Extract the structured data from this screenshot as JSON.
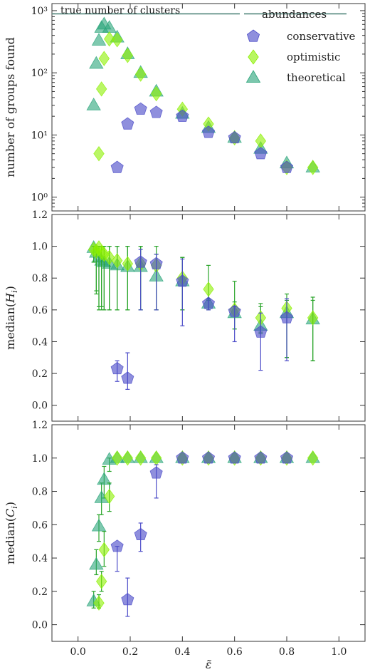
{
  "colors": {
    "conservative": "#4b4bc8",
    "optimistic": "#8cf000",
    "theoretical": "#2aa57a",
    "errorbar_green": "#2aa52a",
    "truth_line": "#5f8f86"
  },
  "chart_data": [
    {
      "type": "scatter",
      "scale_y": "log",
      "ylabel": "number of groups found",
      "ylim": [
        0.6,
        1300
      ],
      "xlim": [
        -0.1,
        1.1
      ],
      "ytick_labels": [
        "10⁰",
        "10¹",
        "10²",
        "10³"
      ],
      "ytick_values": [
        1,
        10,
        100,
        1000
      ],
      "annotation": "true number of clusters",
      "true_value": 890,
      "legend": {
        "title": "abundances",
        "placement": "top-right",
        "entries": [
          "conservative",
          "optimistic",
          "theoretical"
        ]
      },
      "series": [
        {
          "name": "conservative",
          "marker": "pentagon",
          "x": [
            0.15,
            0.19,
            0.24,
            0.3,
            0.4,
            0.5,
            0.6,
            0.7,
            0.8
          ],
          "y": [
            3,
            15,
            26,
            23,
            20,
            11,
            9,
            5,
            3
          ]
        },
        {
          "name": "optimistic",
          "marker": "diamond",
          "x": [
            0.08,
            0.09,
            0.1,
            0.12,
            0.15,
            0.19,
            0.24,
            0.3,
            0.4,
            0.5,
            0.6,
            0.7,
            0.8,
            0.9
          ],
          "y": [
            5,
            55,
            170,
            350,
            340,
            190,
            95,
            46,
            26,
            15,
            9,
            8,
            3,
            3
          ]
        },
        {
          "name": "theoretical",
          "marker": "triangle",
          "x": [
            0.06,
            0.07,
            0.08,
            0.09,
            0.1,
            0.12,
            0.15,
            0.19,
            0.24,
            0.3,
            0.4,
            0.5,
            0.6,
            0.7,
            0.8,
            0.9
          ],
          "y": [
            30,
            140,
            330,
            530,
            600,
            530,
            370,
            200,
            100,
            50,
            22,
            13,
            9,
            6,
            3.5,
            3
          ]
        }
      ]
    },
    {
      "type": "scatter",
      "ylabel": "median(H_i)",
      "ylim": [
        -0.1,
        1.2
      ],
      "xlim": [
        -0.1,
        1.1
      ],
      "ytick_labels": [
        "0.0",
        "0.2",
        "0.4",
        "0.6",
        "0.8",
        "1.0",
        "1.2"
      ],
      "ytick_values": [
        0,
        0.2,
        0.4,
        0.6,
        0.8,
        1.0,
        1.2
      ],
      "series": [
        {
          "name": "conservative",
          "marker": "pentagon",
          "x": [
            0.15,
            0.19,
            0.24,
            0.3,
            0.4,
            0.5,
            0.6,
            0.7,
            0.8
          ],
          "y": [
            0.23,
            0.17,
            0.9,
            0.89,
            0.78,
            0.64,
            0.59,
            0.46,
            0.55
          ],
          "err_low": [
            0.15,
            0.1,
            0.6,
            0.6,
            0.5,
            0.6,
            0.4,
            0.22,
            0.28
          ],
          "err_high": [
            0.28,
            0.33,
            0.98,
            0.95,
            0.92,
            0.67,
            0.62,
            0.58,
            0.67
          ]
        },
        {
          "name": "optimistic",
          "marker": "diamond",
          "x": [
            0.06,
            0.07,
            0.08,
            0.09,
            0.1,
            0.12,
            0.15,
            0.19,
            0.24,
            0.3,
            0.4,
            0.5,
            0.6,
            0.7,
            0.8,
            0.9
          ],
          "y": [
            0.98,
            0.97,
            0.99,
            0.96,
            0.95,
            0.93,
            0.91,
            0.89,
            0.89,
            0.88,
            0.8,
            0.73,
            0.6,
            0.55,
            0.61,
            0.55
          ],
          "err_low": [
            0.9,
            0.72,
            0.62,
            0.62,
            0.6,
            0.6,
            0.6,
            0.6,
            0.6,
            0.6,
            0.6,
            0.6,
            0.48,
            0.46,
            0.3,
            0.28
          ],
          "err_high": [
            1.0,
            1.0,
            1.0,
            1.0,
            1.0,
            1.0,
            1.0,
            1.0,
            1.0,
            1.0,
            0.93,
            0.88,
            0.78,
            0.64,
            0.7,
            0.68
          ]
        },
        {
          "name": "theoretical",
          "marker": "triangle",
          "x": [
            0.06,
            0.07,
            0.08,
            0.09,
            0.1,
            0.12,
            0.15,
            0.19,
            0.24,
            0.3,
            0.4,
            0.5,
            0.6,
            0.7,
            0.8,
            0.9
          ],
          "y": [
            0.99,
            0.96,
            0.93,
            0.91,
            0.9,
            0.89,
            0.88,
            0.87,
            0.87,
            0.81,
            0.78,
            0.64,
            0.58,
            0.5,
            0.58,
            0.54
          ],
          "err_low": [
            0.9,
            0.7,
            0.6,
            0.6,
            0.6,
            0.6,
            0.6,
            0.6,
            0.6,
            0.6,
            0.6,
            0.6,
            0.48,
            0.45,
            0.3,
            0.28
          ],
          "err_high": [
            1.0,
            1.0,
            1.0,
            1.0,
            1.0,
            1.0,
            1.0,
            1.0,
            1.0,
            0.95,
            0.93,
            0.66,
            0.65,
            0.62,
            0.66,
            0.66
          ]
        }
      ]
    },
    {
      "type": "scatter",
      "ylabel": "median(C_i)",
      "xlabel": "ε̃",
      "ylim": [
        -0.1,
        1.2
      ],
      "xlim": [
        -0.1,
        1.1
      ],
      "ytick_labels": [
        "0.0",
        "0.2",
        "0.4",
        "0.6",
        "0.8",
        "1.0",
        "1.2"
      ],
      "ytick_values": [
        0,
        0.2,
        0.4,
        0.6,
        0.8,
        1.0,
        1.2
      ],
      "xtick_labels": [
        "0.0",
        "0.2",
        "0.4",
        "0.6",
        "0.8",
        "1.0"
      ],
      "xtick_values": [
        0,
        0.2,
        0.4,
        0.6,
        0.8,
        1.0
      ],
      "series": [
        {
          "name": "conservative",
          "marker": "pentagon",
          "x": [
            0.15,
            0.19,
            0.24,
            0.3,
            0.4,
            0.5,
            0.6,
            0.7,
            0.8
          ],
          "y": [
            0.47,
            0.15,
            0.54,
            0.91,
            1.0,
            1.0,
            1.0,
            1.0,
            1.0
          ],
          "err_low": [
            0.32,
            0.05,
            0.44,
            0.76,
            1.0,
            1.0,
            1.0,
            1.0,
            1.0
          ],
          "err_high": [
            0.47,
            0.28,
            0.61,
            0.96,
            1.0,
            1.0,
            1.0,
            1.0,
            1.0
          ]
        },
        {
          "name": "optimistic",
          "marker": "diamond",
          "x": [
            0.08,
            0.09,
            0.1,
            0.12,
            0.15,
            0.19,
            0.24,
            0.3,
            0.4,
            0.5,
            0.6,
            0.7,
            0.8,
            0.9
          ],
          "y": [
            0.13,
            0.26,
            0.45,
            0.77,
            1.0,
            1.0,
            1.0,
            1.0,
            1.0,
            1.0,
            1.0,
            1.0,
            1.0,
            1.0
          ],
          "err_low": [
            0.1,
            0.2,
            0.35,
            0.68,
            1.0,
            1.0,
            1.0,
            1.0,
            1.0,
            1.0,
            1.0,
            1.0,
            1.0,
            1.0
          ],
          "err_high": [
            0.18,
            0.32,
            0.56,
            0.85,
            1.0,
            1.0,
            1.0,
            1.0,
            1.0,
            1.0,
            1.0,
            1.0,
            1.0,
            1.0
          ]
        },
        {
          "name": "theoretical",
          "marker": "triangle",
          "x": [
            0.06,
            0.07,
            0.08,
            0.09,
            0.1,
            0.12,
            0.15,
            0.19,
            0.24,
            0.3,
            0.4,
            0.5,
            0.6,
            0.7,
            0.8,
            0.9
          ],
          "y": [
            0.14,
            0.36,
            0.59,
            0.76,
            0.87,
            0.99,
            1.0,
            1.0,
            1.0,
            1.0,
            1.0,
            1.0,
            1.0,
            1.0,
            1.0,
            1.0
          ],
          "err_low": [
            0.1,
            0.3,
            0.5,
            0.66,
            0.76,
            0.92,
            1.0,
            1.0,
            1.0,
            1.0,
            1.0,
            1.0,
            1.0,
            1.0,
            1.0,
            1.0
          ],
          "err_high": [
            0.2,
            0.45,
            0.66,
            0.85,
            0.95,
            1.0,
            1.0,
            1.0,
            1.0,
            1.0,
            1.0,
            1.0,
            1.0,
            1.0,
            1.0,
            1.0
          ]
        }
      ]
    }
  ]
}
